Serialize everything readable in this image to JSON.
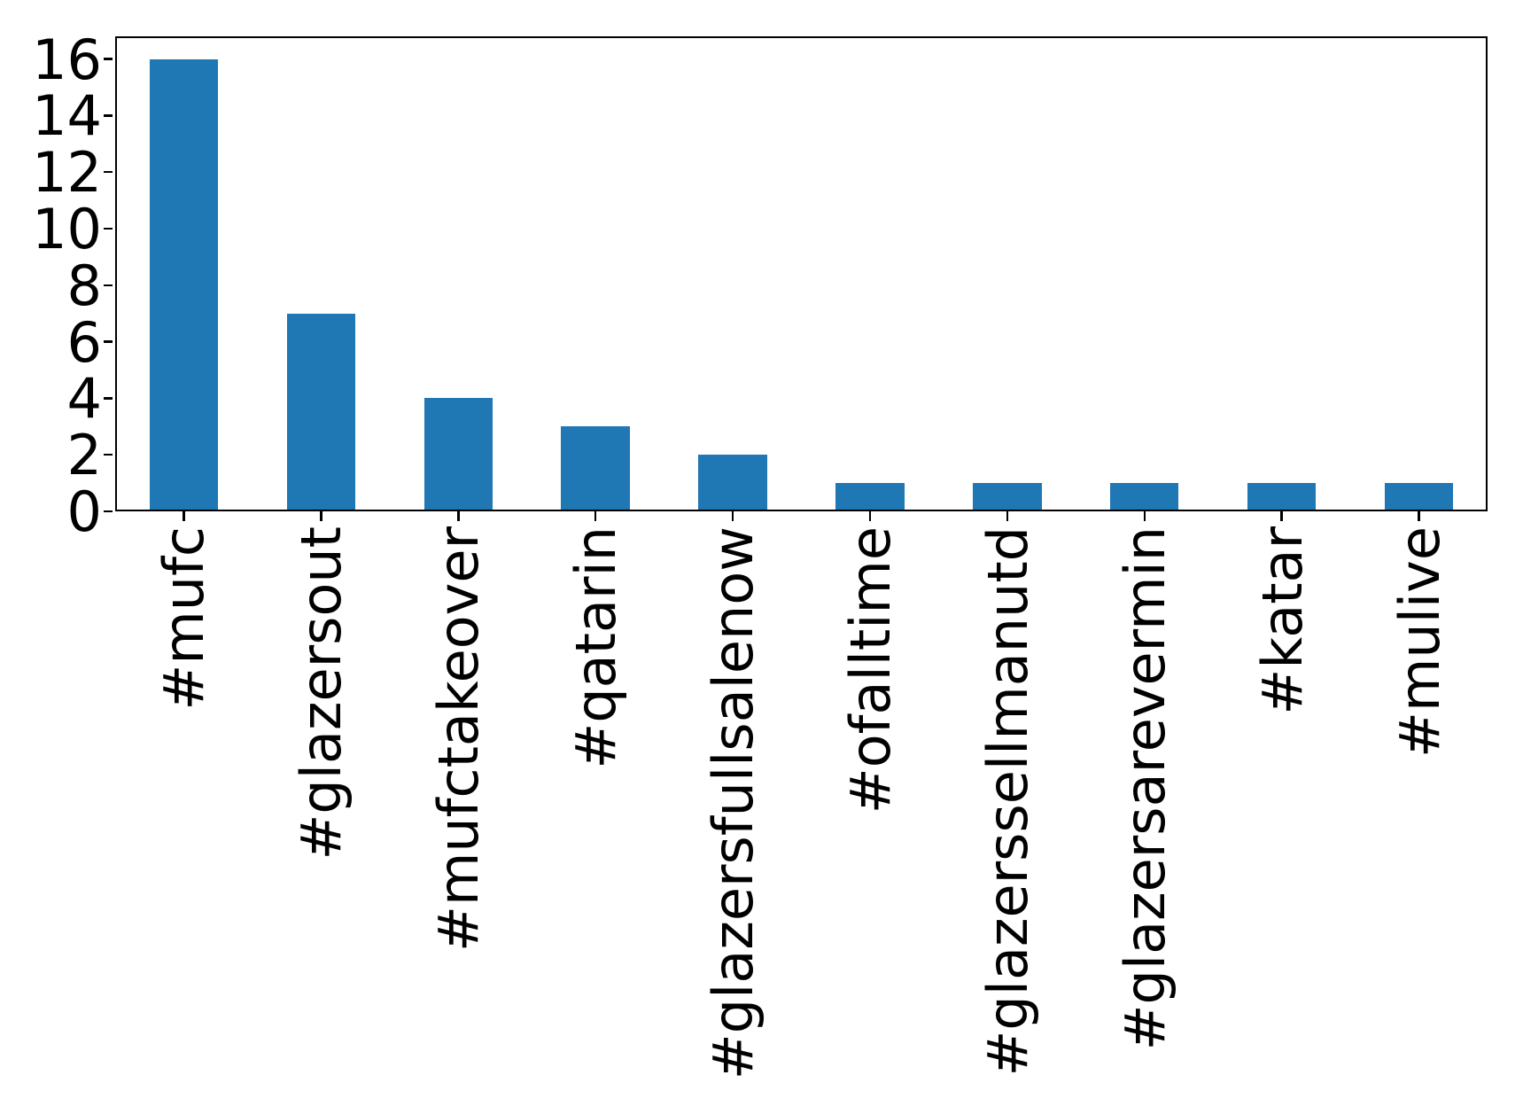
{
  "figure": {
    "background": "#ffffff"
  },
  "chart_data": {
    "type": "bar",
    "title": "",
    "xlabel": "",
    "ylabel": "",
    "categories": [
      "#mufc",
      "#glazersout",
      "#mufctakeover",
      "#qatarin",
      "#glazersfullsalenow",
      "#ofalltime",
      "#glazerssellmanutd",
      "#glazersarevermin",
      "#katar",
      "#mulive"
    ],
    "values": [
      16,
      7,
      4,
      3,
      2,
      1,
      1,
      1,
      1,
      1
    ],
    "yticks": [
      0,
      2,
      4,
      6,
      8,
      10,
      12,
      14,
      16
    ],
    "ylim": [
      0,
      16.8
    ],
    "bar_color": "#1f77b4",
    "bar_width_fraction": 0.5,
    "x_tick_rotation_degrees": 90,
    "grid": false,
    "legend": null,
    "axis_color": "#000000"
  }
}
